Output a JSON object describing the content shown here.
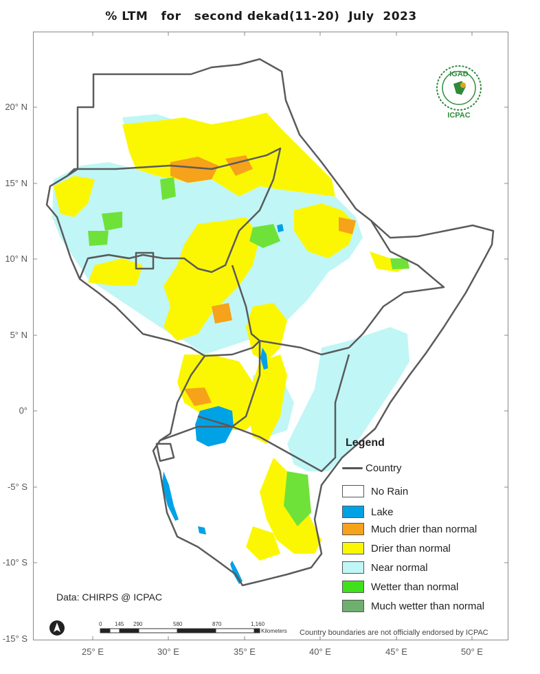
{
  "title": "% LTM   for   second dekad(11-20)  July  2023",
  "axes": {
    "lat_ticks": [
      "20° N",
      "15° N",
      "10° N",
      "5° N",
      "0°",
      "-5° S",
      "-10° S",
      "-15° S"
    ],
    "lon_ticks": [
      "25° E",
      "30° E",
      "35° E",
      "40° E",
      "45° E",
      "50° E"
    ]
  },
  "legend": {
    "title": "Legend",
    "country_label": "Country",
    "items": [
      {
        "label": "No Rain",
        "color": "#ffffff"
      },
      {
        "label": "Lake",
        "color": "#00a2e6"
      },
      {
        "label": "Much drier than normal",
        "color": "#f6a21a"
      },
      {
        "label": "Drier than normal",
        "color": "#fbf702"
      },
      {
        "label": "Near normal",
        "color": "#c0f6f6"
      },
      {
        "label": "Wetter than normal",
        "color": "#3fe11a"
      },
      {
        "label": "Much wetter than normal",
        "color": "#6eb06e"
      }
    ]
  },
  "data_source": "Data: CHIRPS @ ICPAC",
  "disclaimer": "Country boundaries are not officially endorsed by ICPAC",
  "scale_bar": {
    "labels": [
      "0",
      "145",
      "290",
      "580",
      "870",
      "1,160"
    ],
    "unit": "Kilometers"
  },
  "logo": {
    "top_text": "IGAD",
    "bottom_text": "ICPAC"
  },
  "north_arrow": "north-arrow-icon"
}
